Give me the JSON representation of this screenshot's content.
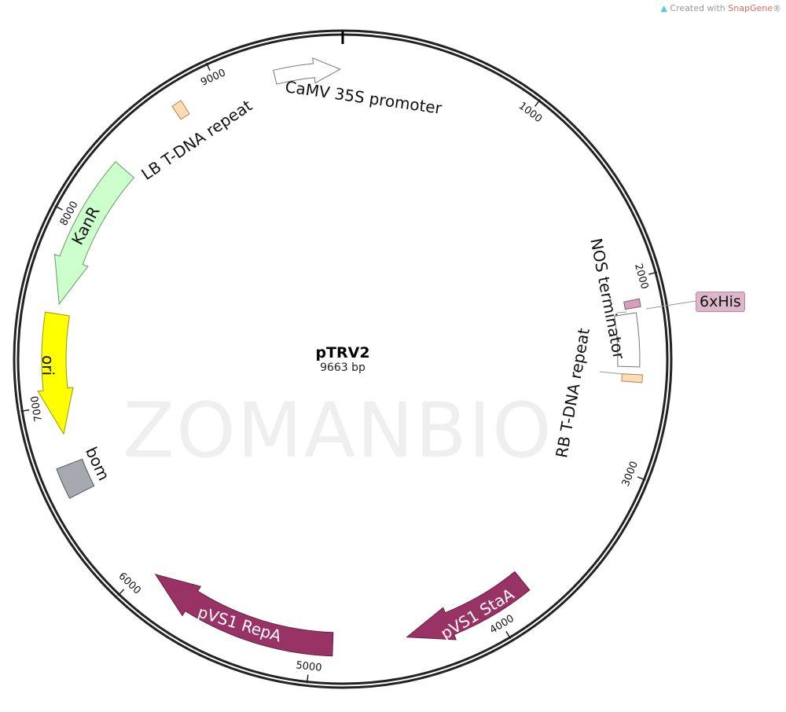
{
  "credit": {
    "prefix": "Created with ",
    "brand": "SnapGene",
    "suffix": "®"
  },
  "watermark": "ZOMANBIO",
  "plasmid": {
    "name": "pTRV2",
    "length_label": "9663 bp",
    "length_bp": 9663
  },
  "ticks": [
    "1000",
    "2000",
    "3000",
    "4000",
    "5000",
    "6000",
    "7000",
    "8000",
    "9000"
  ],
  "features": [
    {
      "name": "CaMV 35S promoter",
      "color": "#ffffff",
      "direction": "forward"
    },
    {
      "name": "LB T-DNA repeat",
      "color": "#fcdcb4"
    },
    {
      "name": "KanR",
      "color": "#ccffcc",
      "direction": "reverse"
    },
    {
      "name": "ori",
      "color": "#ffff00",
      "direction": "reverse"
    },
    {
      "name": "bom",
      "color": "#a6aab0"
    },
    {
      "name": "pVS1 RepA",
      "color": "#993366",
      "direction": "reverse"
    },
    {
      "name": "pVS1 StaA",
      "color": "#993366",
      "direction": "reverse"
    },
    {
      "name": "NOS terminator",
      "color": "#ffffff"
    },
    {
      "name": "RB T-DNA repeat",
      "color": "#fcdcb4"
    },
    {
      "name": "6xHis",
      "color": "#d4a0bc"
    }
  ]
}
